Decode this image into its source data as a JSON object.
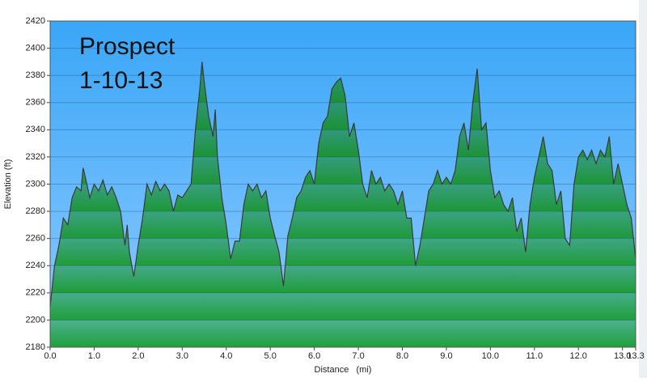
{
  "chart_data": {
    "type": "area",
    "title": "Prospect",
    "subtitle": "1-10-13",
    "x_label": "Distance   (mi)",
    "y_label": "Elevation (ft)",
    "color": "#1fa03a",
    "line_color": "#3a3a3a",
    "background": "#3aa6f7",
    "grid": true,
    "xlim": [
      0,
      13.3
    ],
    "ylim": [
      2180,
      2420
    ],
    "xticks": [
      {
        "value": 0,
        "label": "0.0"
      },
      {
        "value": 1,
        "label": "1.0"
      },
      {
        "value": 2,
        "label": "2.0"
      },
      {
        "value": 3,
        "label": "3.0"
      },
      {
        "value": 4,
        "label": "4.0"
      },
      {
        "value": 5,
        "label": "5.0"
      },
      {
        "value": 6,
        "label": "6.0"
      },
      {
        "value": 7,
        "label": "7.0"
      },
      {
        "value": 8,
        "label": "8.0"
      },
      {
        "value": 9,
        "label": "9.0"
      },
      {
        "value": 10,
        "label": "10.0"
      },
      {
        "value": 11,
        "label": "11.0"
      },
      {
        "value": 12,
        "label": "12.0"
      },
      {
        "value": 13,
        "label": "13.0"
      },
      {
        "value": 13.3,
        "label": "13.3"
      }
    ],
    "yticks": [
      2180,
      2200,
      2220,
      2240,
      2260,
      2280,
      2300,
      2320,
      2340,
      2360,
      2380,
      2400,
      2420
    ],
    "x": [
      0,
      0.1,
      0.2,
      0.3,
      0.4,
      0.5,
      0.6,
      0.7,
      0.75,
      0.8,
      0.9,
      1,
      1.1,
      1.2,
      1.3,
      1.4,
      1.5,
      1.6,
      1.7,
      1.75,
      1.8,
      1.9,
      2,
      2.1,
      2.2,
      2.3,
      2.4,
      2.5,
      2.6,
      2.7,
      2.8,
      2.9,
      3,
      3.1,
      3.2,
      3.3,
      3.4,
      3.45,
      3.5,
      3.6,
      3.7,
      3.75,
      3.8,
      3.9,
      4,
      4.1,
      4.2,
      4.3,
      4.4,
      4.5,
      4.6,
      4.7,
      4.8,
      4.9,
      5,
      5.1,
      5.2,
      5.3,
      5.4,
      5.5,
      5.6,
      5.7,
      5.8,
      5.9,
      6,
      6.1,
      6.2,
      6.3,
      6.4,
      6.5,
      6.6,
      6.7,
      6.8,
      6.9,
      7,
      7.1,
      7.2,
      7.3,
      7.4,
      7.5,
      7.6,
      7.7,
      7.8,
      7.9,
      8,
      8.1,
      8.2,
      8.3,
      8.4,
      8.5,
      8.6,
      8.7,
      8.8,
      8.9,
      9,
      9.1,
      9.2,
      9.3,
      9.4,
      9.5,
      9.6,
      9.7,
      9.8,
      9.9,
      10,
      10.1,
      10.2,
      10.3,
      10.4,
      10.5,
      10.6,
      10.7,
      10.8,
      10.9,
      11,
      11.1,
      11.2,
      11.3,
      11.4,
      11.5,
      11.6,
      11.7,
      11.8,
      11.9,
      12,
      12.1,
      12.2,
      12.3,
      12.4,
      12.5,
      12.6,
      12.7,
      12.8,
      12.9,
      13,
      13.1,
      13.2,
      13.3
    ],
    "values": [
      2210,
      2240,
      2255,
      2275,
      2270,
      2290,
      2298,
      2295,
      2312,
      2305,
      2290,
      2300,
      2295,
      2303,
      2292,
      2298,
      2290,
      2280,
      2255,
      2270,
      2250,
      2232,
      2255,
      2275,
      2300,
      2292,
      2302,
      2295,
      2300,
      2295,
      2280,
      2292,
      2290,
      2295,
      2300,
      2340,
      2370,
      2390,
      2375,
      2350,
      2335,
      2355,
      2320,
      2290,
      2270,
      2245,
      2258,
      2258,
      2285,
      2300,
      2295,
      2300,
      2290,
      2295,
      2275,
      2262,
      2250,
      2225,
      2262,
      2275,
      2290,
      2295,
      2305,
      2310,
      2300,
      2330,
      2345,
      2350,
      2370,
      2375,
      2378,
      2365,
      2335,
      2345,
      2325,
      2300,
      2290,
      2310,
      2300,
      2305,
      2295,
      2300,
      2295,
      2285,
      2295,
      2275,
      2275,
      2240,
      2255,
      2275,
      2295,
      2300,
      2310,
      2300,
      2305,
      2300,
      2310,
      2335,
      2345,
      2325,
      2360,
      2385,
      2340,
      2345,
      2310,
      2290,
      2295,
      2285,
      2280,
      2290,
      2265,
      2275,
      2250,
      2285,
      2305,
      2320,
      2335,
      2315,
      2310,
      2285,
      2295,
      2260,
      2255,
      2300,
      2320,
      2325,
      2318,
      2325,
      2315,
      2325,
      2320,
      2335,
      2300,
      2315,
      2300,
      2285,
      2275,
      2245
    ]
  }
}
